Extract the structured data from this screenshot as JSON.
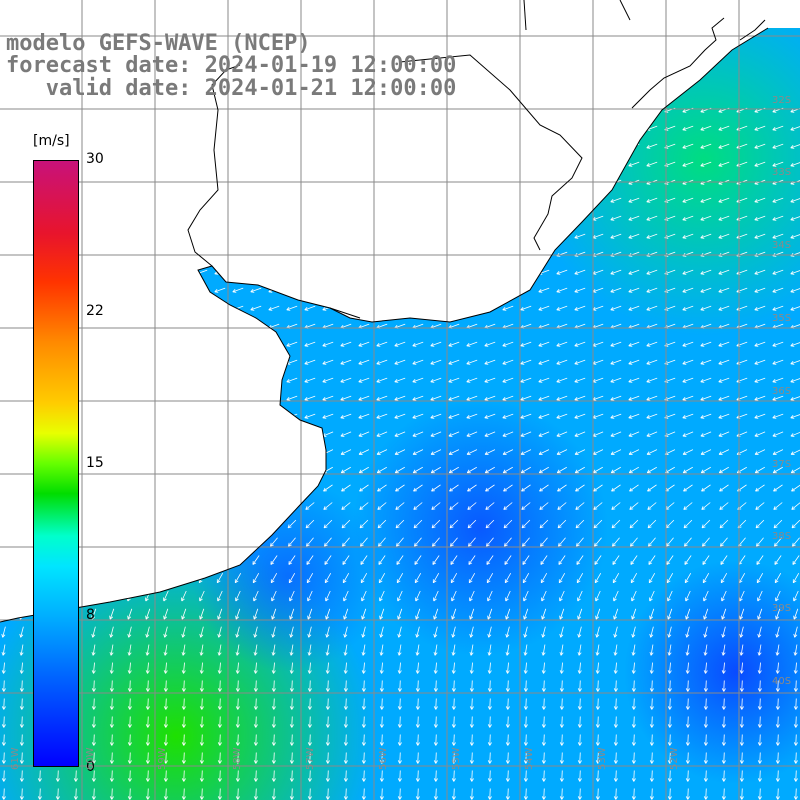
{
  "title": {
    "line1": "modelo GEFS-WAVE (NCEP)",
    "line2": "forecast date: 2024-01-19 12:00:00",
    "line3": "   valid date: 2024-01-21 12:00:00"
  },
  "colorbar": {
    "unit": "[m/s]",
    "ticks": [
      "30",
      "22",
      "15",
      "8",
      "0"
    ],
    "colors": [
      "#c8127a",
      "#e8142c",
      "#ff8a00",
      "#ffcc00",
      "#66ff00",
      "#00dd00",
      "#00ffcc",
      "#00b0ff",
      "#0066ff",
      "#0000ff"
    ]
  },
  "lat_labels": [
    "32S",
    "33S",
    "34S",
    "35S",
    "36S",
    "37S",
    "38S",
    "39S",
    "40S"
  ],
  "lon_labels": [
    "61W",
    "60W",
    "59W",
    "58W",
    "57W",
    "56W",
    "55W",
    "54W",
    "53W",
    "52W"
  ],
  "colors": {
    "land": "#ffffff",
    "grid": "#8a8a8a",
    "coast": "#000000",
    "arrow": "#ffffff"
  }
}
